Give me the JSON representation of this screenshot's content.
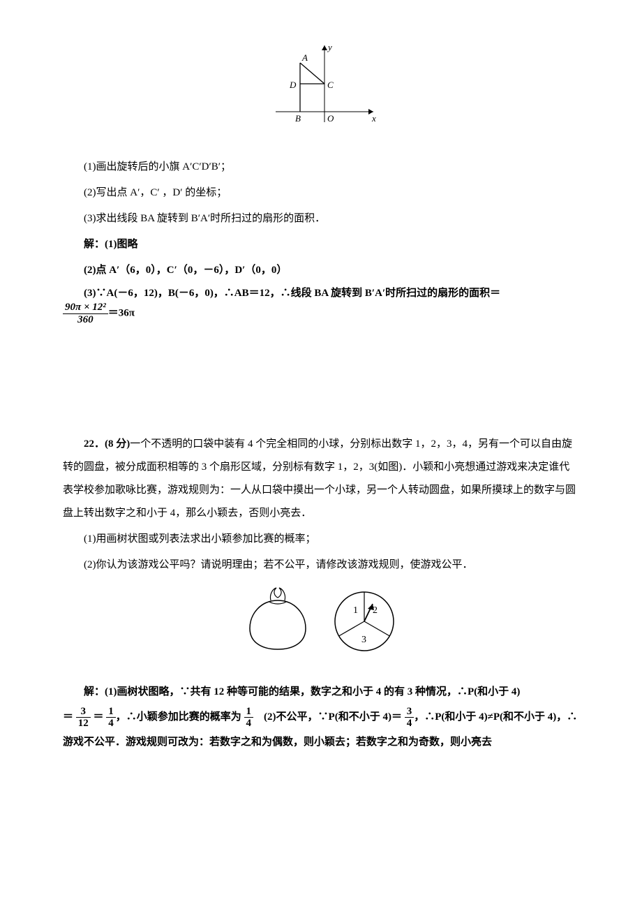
{
  "figure1": {
    "labels": {
      "A": "A",
      "B": "B",
      "C": "C",
      "D": "D",
      "O": "O",
      "x": "x",
      "y": "y"
    },
    "axis_color": "#000000",
    "line_color": "#000000",
    "font_size_pt": 12,
    "font_style": "italic"
  },
  "q21": {
    "p1": "(1)画出旋转后的小旗 A′C′D′B′；",
    "p2": "(2)写出点 A′，C′ ，D′ 的坐标；",
    "p3": "(3)求出线段 BA 旋转到 B′A′时所扫过的扇形的面积．",
    "sol_label": "解：(1)图略",
    "sol2": "(2)点 A′（6，0），C′（0，－6），D′（0，0）",
    "sol3_pre": "(3)∵A(－6，12)，B(－6，0)，∴AB＝12，∴线段 BA 旋转到 B′A′时所扫过的扇形的面积＝",
    "frac_num": "90π × 12²",
    "frac_den": "360",
    "sol3_post": "＝36π"
  },
  "q22": {
    "lead": "22．(8 分)一个不透明的口袋中装有 4 个完全相同的小球，分别标出数字 1，2，3，4，另有一个可以自由旋转的圆盘，被分成面积相等的 3 个扇形区域，分别标有数字 1，2，3(如图)．小颖和小亮想通过游戏来决定谁代表学校参加歌咏比赛，游戏规则为：一人从口袋中摸出一个小球，另一个人转动圆盘，如果所摸球上的数字与圆盘上转出数字之和小于 4，那么小颖去，否则小亮去．",
    "p1": "(1)用画树状图或列表法求出小颖参加比赛的概率；",
    "p2": "(2)你认为该游戏公平吗？请说明理由；若不公平，请修改该游戏规则，使游戏公平．",
    "spinner_labels": [
      "1",
      "2",
      "3"
    ],
    "sol1_a": "解：(1)画树状图略，∵共有 12 种等可能的结果，数字之和小于 4 的有 3 种情况，∴P(和小于 4)",
    "eq": "＝",
    "f1_num": "3",
    "f1_den": "12",
    "f2_num": "1",
    "f2_den": "4",
    "sol1_b": "，∴小颖参加比赛的概率为",
    "f3_num": "1",
    "f3_den": "4",
    "sol2_a": "　(2)不公平，∵P(和不小于 4)＝",
    "f4_num": "3",
    "f4_den": "4",
    "sol2_b": "，∴P(和小于 4)≠P(和不小于 4)，∴游戏不公平．游戏规则可改为：若数字之和为偶数，则小颖去；若数字之和为奇数，则小亮去"
  }
}
